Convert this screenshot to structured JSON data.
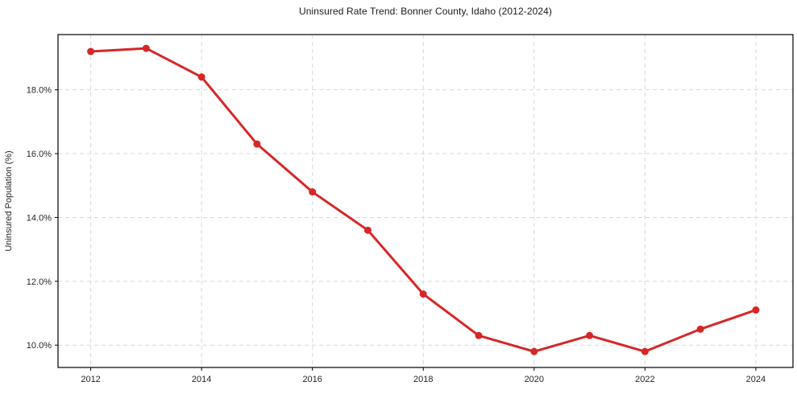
{
  "chart_data": {
    "type": "line",
    "title": "Uninsured Rate Trend: Bonner County, Idaho (2012-2024)",
    "ylabel": "Uninsured Population (%)",
    "xlabel": "",
    "x": [
      2012,
      2013,
      2014,
      2015,
      2016,
      2017,
      2018,
      2019,
      2020,
      2021,
      2022,
      2023,
      2024
    ],
    "values": [
      19.2,
      19.3,
      18.4,
      16.3,
      14.8,
      13.6,
      11.6,
      10.3,
      9.8,
      10.3,
      9.8,
      10.5,
      11.1
    ],
    "xticks": [
      2012,
      2014,
      2016,
      2018,
      2020,
      2022,
      2024
    ],
    "xtick_labels": [
      "2012",
      "2014",
      "2016",
      "2018",
      "2020",
      "2022",
      "2024"
    ],
    "yticks": [
      10,
      12,
      14,
      16,
      18
    ],
    "ytick_labels": [
      "10.0%",
      "12.0%",
      "14.0%",
      "16.0%",
      "18.0%"
    ],
    "xlim": [
      2011.41,
      2024.67
    ],
    "ylim": [
      9.3,
      19.73
    ],
    "grid": true,
    "legend_position": "none",
    "line_color": "#d62728",
    "marker_color": "#d62728",
    "grid_color": "#d9d9d9",
    "axis_color": "#000000"
  }
}
